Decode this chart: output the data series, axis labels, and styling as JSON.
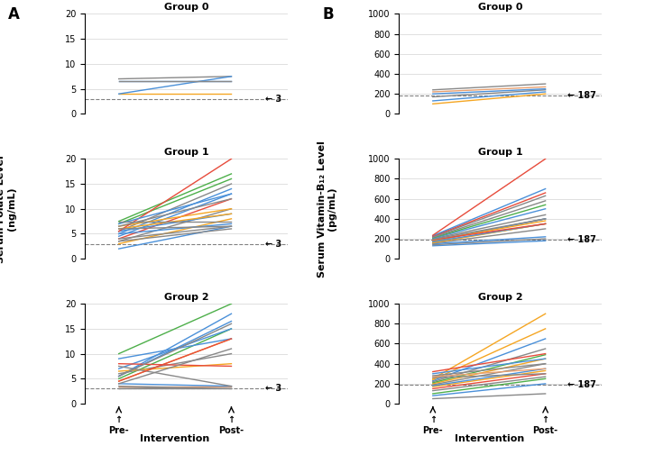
{
  "folate_group0": {
    "pre": [
      4.0,
      6.5,
      7.0,
      4.0,
      6.5
    ],
    "post": [
      4.0,
      6.5,
      7.5,
      7.5,
      6.5
    ],
    "colors": [
      "#f5a623",
      "#4a90d9",
      "#888888",
      "#4a90d9",
      "#888888"
    ]
  },
  "folate_group1": {
    "pre": [
      2.0,
      3.0,
      3.5,
      4.0,
      4.5,
      5.0,
      5.5,
      5.5,
      6.0,
      6.5,
      7.0,
      7.5,
      3.5,
      4.0,
      5.0,
      5.5,
      6.0,
      6.5,
      7.0,
      7.5
    ],
    "post": [
      6.5,
      8.0,
      10.0,
      12.0,
      13.0,
      14.0,
      15.0,
      9.0,
      9.0,
      10.0,
      16.0,
      17.0,
      6.0,
      6.5,
      7.0,
      20.0,
      6.5,
      12.0,
      13.0,
      7.5
    ],
    "colors": [
      "#4a90d9",
      "#f5a623",
      "#888888",
      "#e74c3c",
      "#4a90d9",
      "#4a90d9",
      "#888888",
      "#4a90d9",
      "#f5a623",
      "#f5a623",
      "#4daf4a",
      "#4daf4a",
      "#888888",
      "#888888",
      "#4a90d9",
      "#e74c3c",
      "#888888",
      "#888888",
      "#4a90d9",
      "#888888"
    ]
  },
  "folate_group2": {
    "pre": [
      3.0,
      3.5,
      4.0,
      4.5,
      5.0,
      5.5,
      5.5,
      6.0,
      6.5,
      7.0,
      7.5,
      8.0,
      9.0,
      10.0,
      3.0,
      3.5,
      4.0,
      4.5,
      5.5
    ],
    "post": [
      3.5,
      3.5,
      3.5,
      13.0,
      15.0,
      16.5,
      18.0,
      10.0,
      8.0,
      15.0,
      3.5,
      7.5,
      13.0,
      20.0,
      3.0,
      3.0,
      11.0,
      13.0,
      16.0
    ],
    "colors": [
      "#888888",
      "#e8a070",
      "#4a90d9",
      "#f5a623",
      "#4daf4a",
      "#4a90d9",
      "#4a90d9",
      "#888888",
      "#f5a623",
      "#4a90d9",
      "#888888",
      "#e74c3c",
      "#4a90d9",
      "#4daf4a",
      "#888888",
      "#888888",
      "#888888",
      "#e74c3c",
      "#888888"
    ]
  },
  "b12_group0": {
    "pre": [
      100,
      130,
      170,
      200,
      220,
      240
    ],
    "post": [
      200,
      220,
      240,
      250,
      270,
      300
    ],
    "colors": [
      "#f5a623",
      "#4a90d9",
      "#888888",
      "#4a90d9",
      "#e8a070",
      "#888888"
    ]
  },
  "b12_group1": {
    "pre": [
      130,
      140,
      150,
      155,
      160,
      165,
      170,
      175,
      180,
      185,
      190,
      195,
      200,
      205,
      210,
      215,
      220,
      225,
      230,
      235
    ],
    "post": [
      180,
      200,
      220,
      300,
      350,
      350,
      350,
      400,
      400,
      380,
      350,
      400,
      440,
      500,
      540,
      580,
      630,
      660,
      700,
      1000
    ],
    "colors": [
      "#4a90d9",
      "#888888",
      "#4a90d9",
      "#888888",
      "#f5a623",
      "#f5a623",
      "#4a90d9",
      "#888888",
      "#4a90d9",
      "#f5a623",
      "#e74c3c",
      "#888888",
      "#888888",
      "#4a90d9",
      "#4daf4a",
      "#888888",
      "#888888",
      "#e74c3c",
      "#4a90d9",
      "#e74c3c"
    ]
  },
  "b12_group2": {
    "pre": [
      50,
      80,
      100,
      130,
      150,
      170,
      180,
      190,
      200,
      210,
      220,
      230,
      240,
      250,
      260,
      270,
      280,
      300,
      320
    ],
    "post": [
      100,
      200,
      250,
      270,
      300,
      330,
      350,
      400,
      450,
      490,
      550,
      650,
      750,
      900,
      300,
      350,
      400,
      450,
      500
    ],
    "colors": [
      "#888888",
      "#4a90d9",
      "#4daf4a",
      "#888888",
      "#e74c3c",
      "#f5a623",
      "#4a90d9",
      "#888888",
      "#f5a623",
      "#4daf4a",
      "#888888",
      "#4a90d9",
      "#f5a623",
      "#f5a623",
      "#888888",
      "#e8a070",
      "#888888",
      "#4a90d9",
      "#e74c3c"
    ]
  },
  "folate_ref": 3,
  "b12_ref": 187,
  "folate_ylim": [
    0,
    20
  ],
  "b12_ylim": [
    0,
    1000
  ],
  "folate_yticks": [
    0,
    5,
    10,
    15,
    20
  ],
  "b12_yticks": [
    0,
    200,
    400,
    600,
    800,
    1000
  ],
  "group_titles": [
    "Group 0",
    "Group 1",
    "Group 2"
  ],
  "panel_a_label": "A",
  "panel_b_label": "B",
  "ylabel_a": "Serum Folate Level\n(ng/mL)",
  "ylabel_b": "Serum Vitamin-B₁₂ Level\n(pg/mL)",
  "xlabel": "Intervention",
  "xlabel_pre": "Pre-",
  "xlabel_post": "Post-"
}
